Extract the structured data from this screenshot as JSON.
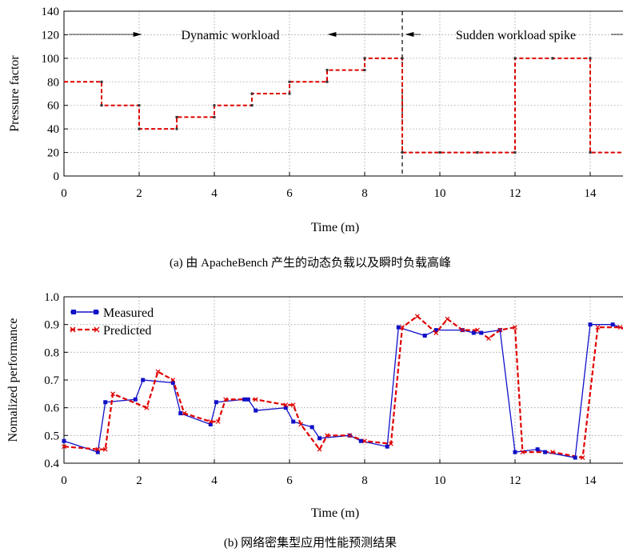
{
  "chart_data": [
    {
      "type": "line",
      "step": true,
      "xlabel": "Time (m)",
      "ylabel": "Pressure factor",
      "xlim": [
        0,
        15
      ],
      "ylim": [
        0,
        140
      ],
      "xticks": [
        "0",
        "2",
        "4",
        "6",
        "8",
        "10",
        "12",
        "14"
      ],
      "yticks": [
        "0",
        "20",
        "40",
        "60",
        "80",
        "100",
        "120",
        "140"
      ],
      "grid": true,
      "caption": "(a) 由 ApacheBench 产生的动态负载以及瞬时负载高峰",
      "annotations": [
        "Dynamic workload",
        "Sudden workload spike"
      ],
      "divider_x": 9,
      "series": [
        {
          "color": "#e00000",
          "x": [
            0,
            1,
            2,
            3,
            4,
            5,
            6,
            7,
            8,
            9,
            10,
            11,
            12,
            13,
            14,
            15
          ],
          "y": [
            80,
            60,
            40,
            50,
            60,
            70,
            80,
            90,
            100,
            20,
            20,
            20,
            100,
            100,
            20,
            20
          ]
        }
      ]
    },
    {
      "type": "line",
      "xlabel": "Time (m)",
      "ylabel": "Nomalized performance",
      "xlim": [
        0,
        15
      ],
      "ylim": [
        0.4,
        1.0
      ],
      "xticks": [
        "0",
        "2",
        "4",
        "6",
        "8",
        "10",
        "12",
        "14"
      ],
      "yticks": [
        "0.4",
        "0.5",
        "0.6",
        "0.7",
        "0.8",
        "0.9",
        "1.0"
      ],
      "grid": true,
      "legend": "top-left",
      "caption": "(b) 网络密集型应用性能预测结果",
      "series": [
        {
          "name": "Measured",
          "color": "#1010c8",
          "marker": "square",
          "x": [
            0,
            0.9,
            1.1,
            1.9,
            2.1,
            2.9,
            3.1,
            3.9,
            4.05,
            4.8,
            4.9,
            5.1,
            5.9,
            6.1,
            6.6,
            6.8,
            7.6,
            7.9,
            8.6,
            8.9,
            9.6,
            9.9,
            10.6,
            10.9,
            11.1,
            11.6,
            12.0,
            12.6,
            12.8,
            13.6,
            14.0,
            14.6,
            15.0
          ],
          "y": [
            0.48,
            0.44,
            0.62,
            0.63,
            0.7,
            0.69,
            0.58,
            0.54,
            0.62,
            0.63,
            0.63,
            0.59,
            0.6,
            0.55,
            0.53,
            0.49,
            0.5,
            0.48,
            0.46,
            0.89,
            0.86,
            0.88,
            0.88,
            0.87,
            0.87,
            0.88,
            0.44,
            0.45,
            0.44,
            0.42,
            0.9,
            0.9,
            0.88
          ]
        },
        {
          "name": "Predicted",
          "color": "#e00000",
          "marker": "x",
          "x": [
            0,
            0.9,
            1.1,
            1.3,
            2.2,
            2.5,
            2.9,
            3.2,
            3.9,
            4.1,
            4.3,
            5.1,
            5.9,
            6.1,
            6.3,
            6.8,
            7.0,
            7.6,
            8.0,
            8.7,
            9.0,
            9.4,
            9.9,
            10.2,
            10.6,
            11.0,
            11.3,
            11.6,
            12.0,
            12.2,
            13.0,
            13.8,
            14.2,
            14.8,
            15.0
          ],
          "y": [
            0.46,
            0.45,
            0.45,
            0.65,
            0.6,
            0.73,
            0.7,
            0.58,
            0.55,
            0.55,
            0.63,
            0.63,
            0.61,
            0.61,
            0.54,
            0.45,
            0.5,
            0.5,
            0.48,
            0.47,
            0.89,
            0.93,
            0.87,
            0.92,
            0.88,
            0.88,
            0.85,
            0.88,
            0.89,
            0.44,
            0.44,
            0.42,
            0.89,
            0.89,
            0.88
          ]
        }
      ]
    }
  ]
}
